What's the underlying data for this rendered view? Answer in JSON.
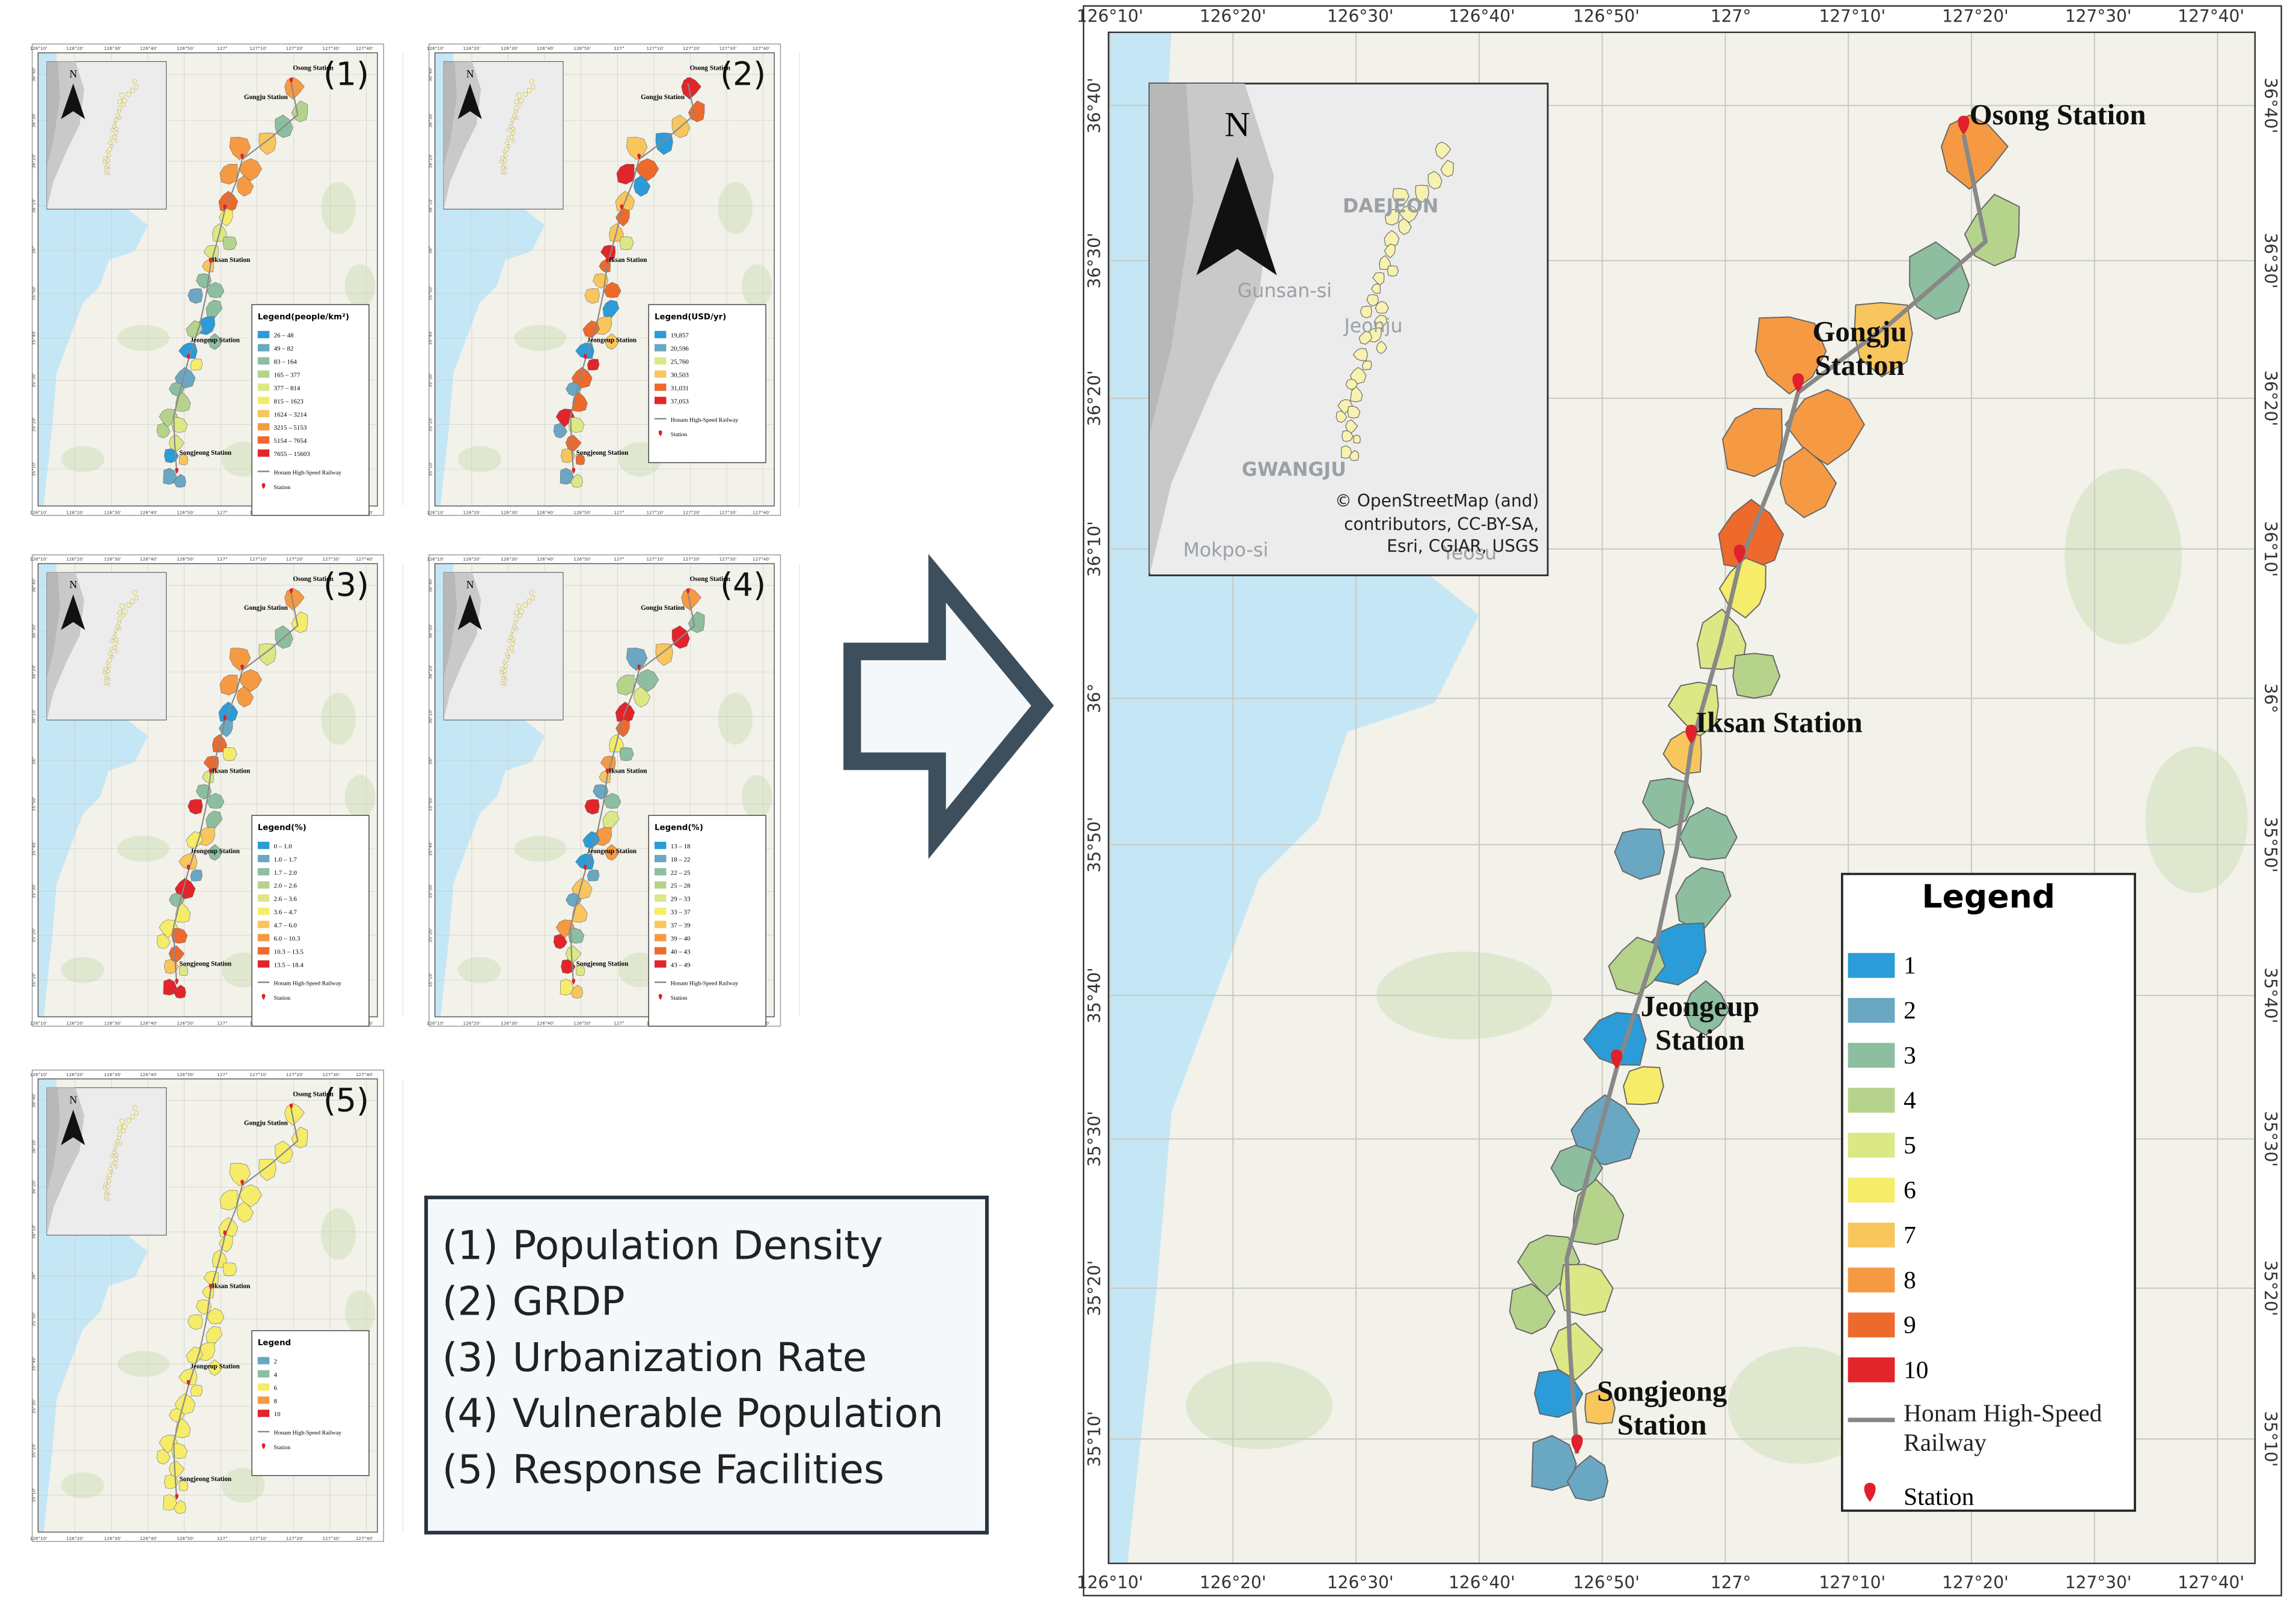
{
  "panels": [
    {
      "label": "(1)",
      "legend": {
        "title": "Legend(people/km²)",
        "items": [
          {
            "label": "26 – 48",
            "color": "#2b9cd8"
          },
          {
            "label": "49 – 82",
            "color": "#6aa7c2"
          },
          {
            "label": "83 – 164",
            "color": "#8dbe9f"
          },
          {
            "label": "165 – 377",
            "color": "#b6d38c"
          },
          {
            "label": "377 – 814",
            "color": "#dbe885"
          },
          {
            "label": "815 – 1623",
            "color": "#f5ec6a"
          },
          {
            "label": "1624 – 3214",
            "color": "#f9c65d"
          },
          {
            "label": "3215 – 5153",
            "color": "#f59a43"
          },
          {
            "label": "5154 – 7654",
            "color": "#ee6a2c"
          },
          {
            "label": "7655 – 15603",
            "color": "#e1252a"
          }
        ]
      }
    },
    {
      "label": "(2)",
      "legend": {
        "title": "Legend(USD/yr)",
        "items": [
          {
            "label": "19,857",
            "color": "#2b9cd8"
          },
          {
            "label": "20,596",
            "color": "#6aa7c2"
          },
          {
            "label": "25,760",
            "color": "#dbe885"
          },
          {
            "label": "30,503",
            "color": "#f9c65d"
          },
          {
            "label": "31,031",
            "color": "#ee6a2c"
          },
          {
            "label": "37,053",
            "color": "#e1252a"
          }
        ]
      }
    },
    {
      "label": "(3)",
      "legend": {
        "title": "Legend(%)",
        "items": [
          {
            "label": "0 – 1.0",
            "color": "#2b9cd8"
          },
          {
            "label": "1.0 – 1.7",
            "color": "#6aa7c2"
          },
          {
            "label": "1.7 – 2.0",
            "color": "#8dbe9f"
          },
          {
            "label": "2.0 – 2.6",
            "color": "#b6d38c"
          },
          {
            "label": "2.6 – 3.6",
            "color": "#dbe885"
          },
          {
            "label": "3.6 – 4.7",
            "color": "#f5ec6a"
          },
          {
            "label": "4.7 – 6.0",
            "color": "#f9c65d"
          },
          {
            "label": "6.0 – 10.3",
            "color": "#f59a43"
          },
          {
            "label": "10.3 – 13.5",
            "color": "#ee6a2c"
          },
          {
            "label": "13.5 – 18.4",
            "color": "#e1252a"
          }
        ]
      }
    },
    {
      "label": "(4)",
      "legend": {
        "title": "Legend(%)",
        "items": [
          {
            "label": "13 – 18",
            "color": "#2b9cd8"
          },
          {
            "label": "18 – 22",
            "color": "#6aa7c2"
          },
          {
            "label": "22 – 25",
            "color": "#8dbe9f"
          },
          {
            "label": "25 – 28",
            "color": "#b6d38c"
          },
          {
            "label": "29 – 33",
            "color": "#dbe885"
          },
          {
            "label": "33 – 37",
            "color": "#f5ec6a"
          },
          {
            "label": "37 – 39",
            "color": "#f9c65d"
          },
          {
            "label": "39 – 40",
            "color": "#f59a43"
          },
          {
            "label": "40 – 43",
            "color": "#ee6a2c"
          },
          {
            "label": "43 – 49",
            "color": "#e1252a"
          }
        ]
      }
    },
    {
      "label": "(5)",
      "legend": {
        "title": "Legend",
        "items": [
          {
            "label": "2",
            "color": "#6aa7c2"
          },
          {
            "label": "4",
            "color": "#8dbe9f"
          },
          {
            "label": "6",
            "color": "#f5ec6a"
          },
          {
            "label": "8",
            "color": "#f59a43"
          },
          {
            "label": "10",
            "color": "#e1252a"
          }
        ]
      }
    }
  ],
  "topics": [
    {
      "number": "(1)",
      "label": "Population Density"
    },
    {
      "number": "(2)",
      "label": "GRDP"
    },
    {
      "number": "(3)",
      "label": "Urbanization Rate"
    },
    {
      "number": "(4)",
      "label": "Vulnerable Population"
    },
    {
      "number": "(5)",
      "label": "Response Facilities"
    }
  ],
  "main_map": {
    "longitudes": [
      "126°10'",
      "126°20'",
      "126°30'",
      "126°40'",
      "126°50'",
      "127°",
      "127°10'",
      "127°20'",
      "127°30'",
      "127°40'"
    ],
    "latitudes": [
      "36°40'",
      "36°30'",
      "36°20'",
      "36°10'",
      "36°",
      "35°50'",
      "35°40'",
      "35°30'",
      "35°20'",
      "35°10'"
    ],
    "stations": [
      "Osong Station",
      "Gongju Station",
      "Iksan Station",
      "Jeongeup Station",
      "Songjeong Station"
    ],
    "inset": {
      "north": "N",
      "places": [
        "DAEJEON",
        "Gunsan-si",
        "Jeonju",
        "GWANGJU",
        "Mokpo-si",
        "Yeosu"
      ],
      "attribution": "© OpenStreetMap (and) contributors, CC-BY-SA, Esri, CGIAR, USGS"
    },
    "legend": {
      "title": "Legend",
      "items": [
        {
          "label": "1",
          "color": "#2b9cd8"
        },
        {
          "label": "2",
          "color": "#6aa7c2"
        },
        {
          "label": "3",
          "color": "#8dbe9f"
        },
        {
          "label": "4",
          "color": "#b6d38c"
        },
        {
          "label": "5",
          "color": "#dbe885"
        },
        {
          "label": "6",
          "color": "#f5ec6a"
        },
        {
          "label": "7",
          "color": "#f9c65d"
        },
        {
          "label": "8",
          "color": "#f59a43"
        },
        {
          "label": "9",
          "color": "#ee6a2c"
        },
        {
          "label": "10",
          "color": "#e1252a"
        }
      ],
      "railway": "Honam High-Speed Railway",
      "station": "Station"
    }
  }
}
